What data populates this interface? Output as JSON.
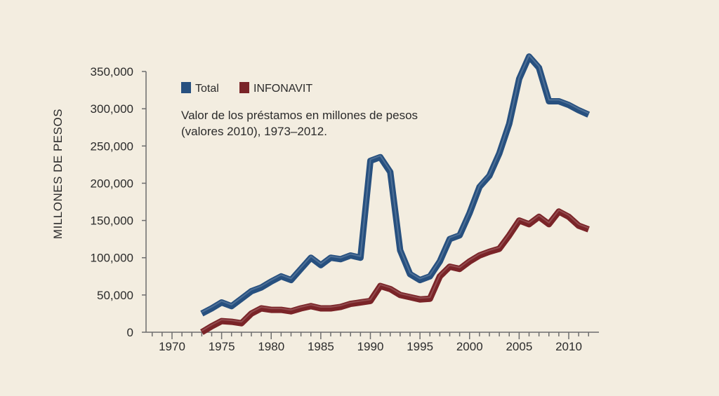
{
  "chart_data": {
    "type": "line",
    "ylabel": "MILLONES DE PESOS",
    "xlabel": "",
    "ylim": [
      0,
      350000
    ],
    "xlim": [
      1965,
      2013
    ],
    "grid": false,
    "legend_position": "top-left",
    "annotation": [
      "Valor de los préstamos en millones de pesos",
      "(valores 2010), 1973–2012."
    ],
    "y_ticks": [
      0,
      50000,
      100000,
      150000,
      200000,
      250000,
      300000,
      350000
    ],
    "y_tick_labels": [
      "0",
      "50,000",
      "100,000",
      "150,000",
      "200,000",
      "250,000",
      "300,000",
      "350,000"
    ],
    "x_ticks": [
      1970,
      1975,
      1980,
      1985,
      1990,
      1995,
      2000,
      2005,
      2010
    ],
    "x_tick_labels": [
      "1970",
      "1975",
      "1980",
      "1985",
      "1990",
      "1995",
      "2000",
      "2005",
      "2010"
    ],
    "series": [
      {
        "name": "Total",
        "color": "#27507f",
        "x": [
          1973,
          1974,
          1975,
          1976,
          1977,
          1978,
          1979,
          1980,
          1981,
          1982,
          1983,
          1984,
          1985,
          1986,
          1987,
          1988,
          1989,
          1990,
          1991,
          1992,
          1993,
          1994,
          1995,
          1996,
          1997,
          1998,
          1999,
          2000,
          2001,
          2002,
          2003,
          2004,
          2005,
          2006,
          2007,
          2008,
          2009,
          2010,
          2011,
          2012
        ],
        "values": [
          25000,
          32000,
          40000,
          35000,
          45000,
          55000,
          60000,
          68000,
          75000,
          70000,
          85000,
          100000,
          90000,
          100000,
          98000,
          103000,
          100000,
          230000,
          235000,
          215000,
          110000,
          78000,
          70000,
          75000,
          95000,
          125000,
          130000,
          160000,
          195000,
          210000,
          240000,
          280000,
          340000,
          370000,
          355000,
          310000,
          310000,
          305000,
          298000,
          292000
        ]
      },
      {
        "name": "INFONAVIT",
        "color": "#7a2428",
        "x": [
          1973,
          1974,
          1975,
          1976,
          1977,
          1978,
          1979,
          1980,
          1981,
          1982,
          1983,
          1984,
          1985,
          1986,
          1987,
          1988,
          1989,
          1990,
          1991,
          1992,
          1993,
          1994,
          1995,
          1996,
          1997,
          1998,
          1999,
          2000,
          2001,
          2002,
          2003,
          2004,
          2005,
          2006,
          2007,
          2008,
          2009,
          2010,
          2011,
          2012
        ],
        "values": [
          0,
          8000,
          15000,
          14000,
          12000,
          25000,
          32000,
          30000,
          30000,
          28000,
          32000,
          35000,
          32000,
          32000,
          34000,
          38000,
          40000,
          42000,
          62000,
          58000,
          50000,
          47000,
          44000,
          45000,
          75000,
          88000,
          85000,
          95000,
          103000,
          108000,
          112000,
          130000,
          150000,
          145000,
          155000,
          145000,
          162000,
          155000,
          143000,
          138000
        ]
      }
    ]
  }
}
